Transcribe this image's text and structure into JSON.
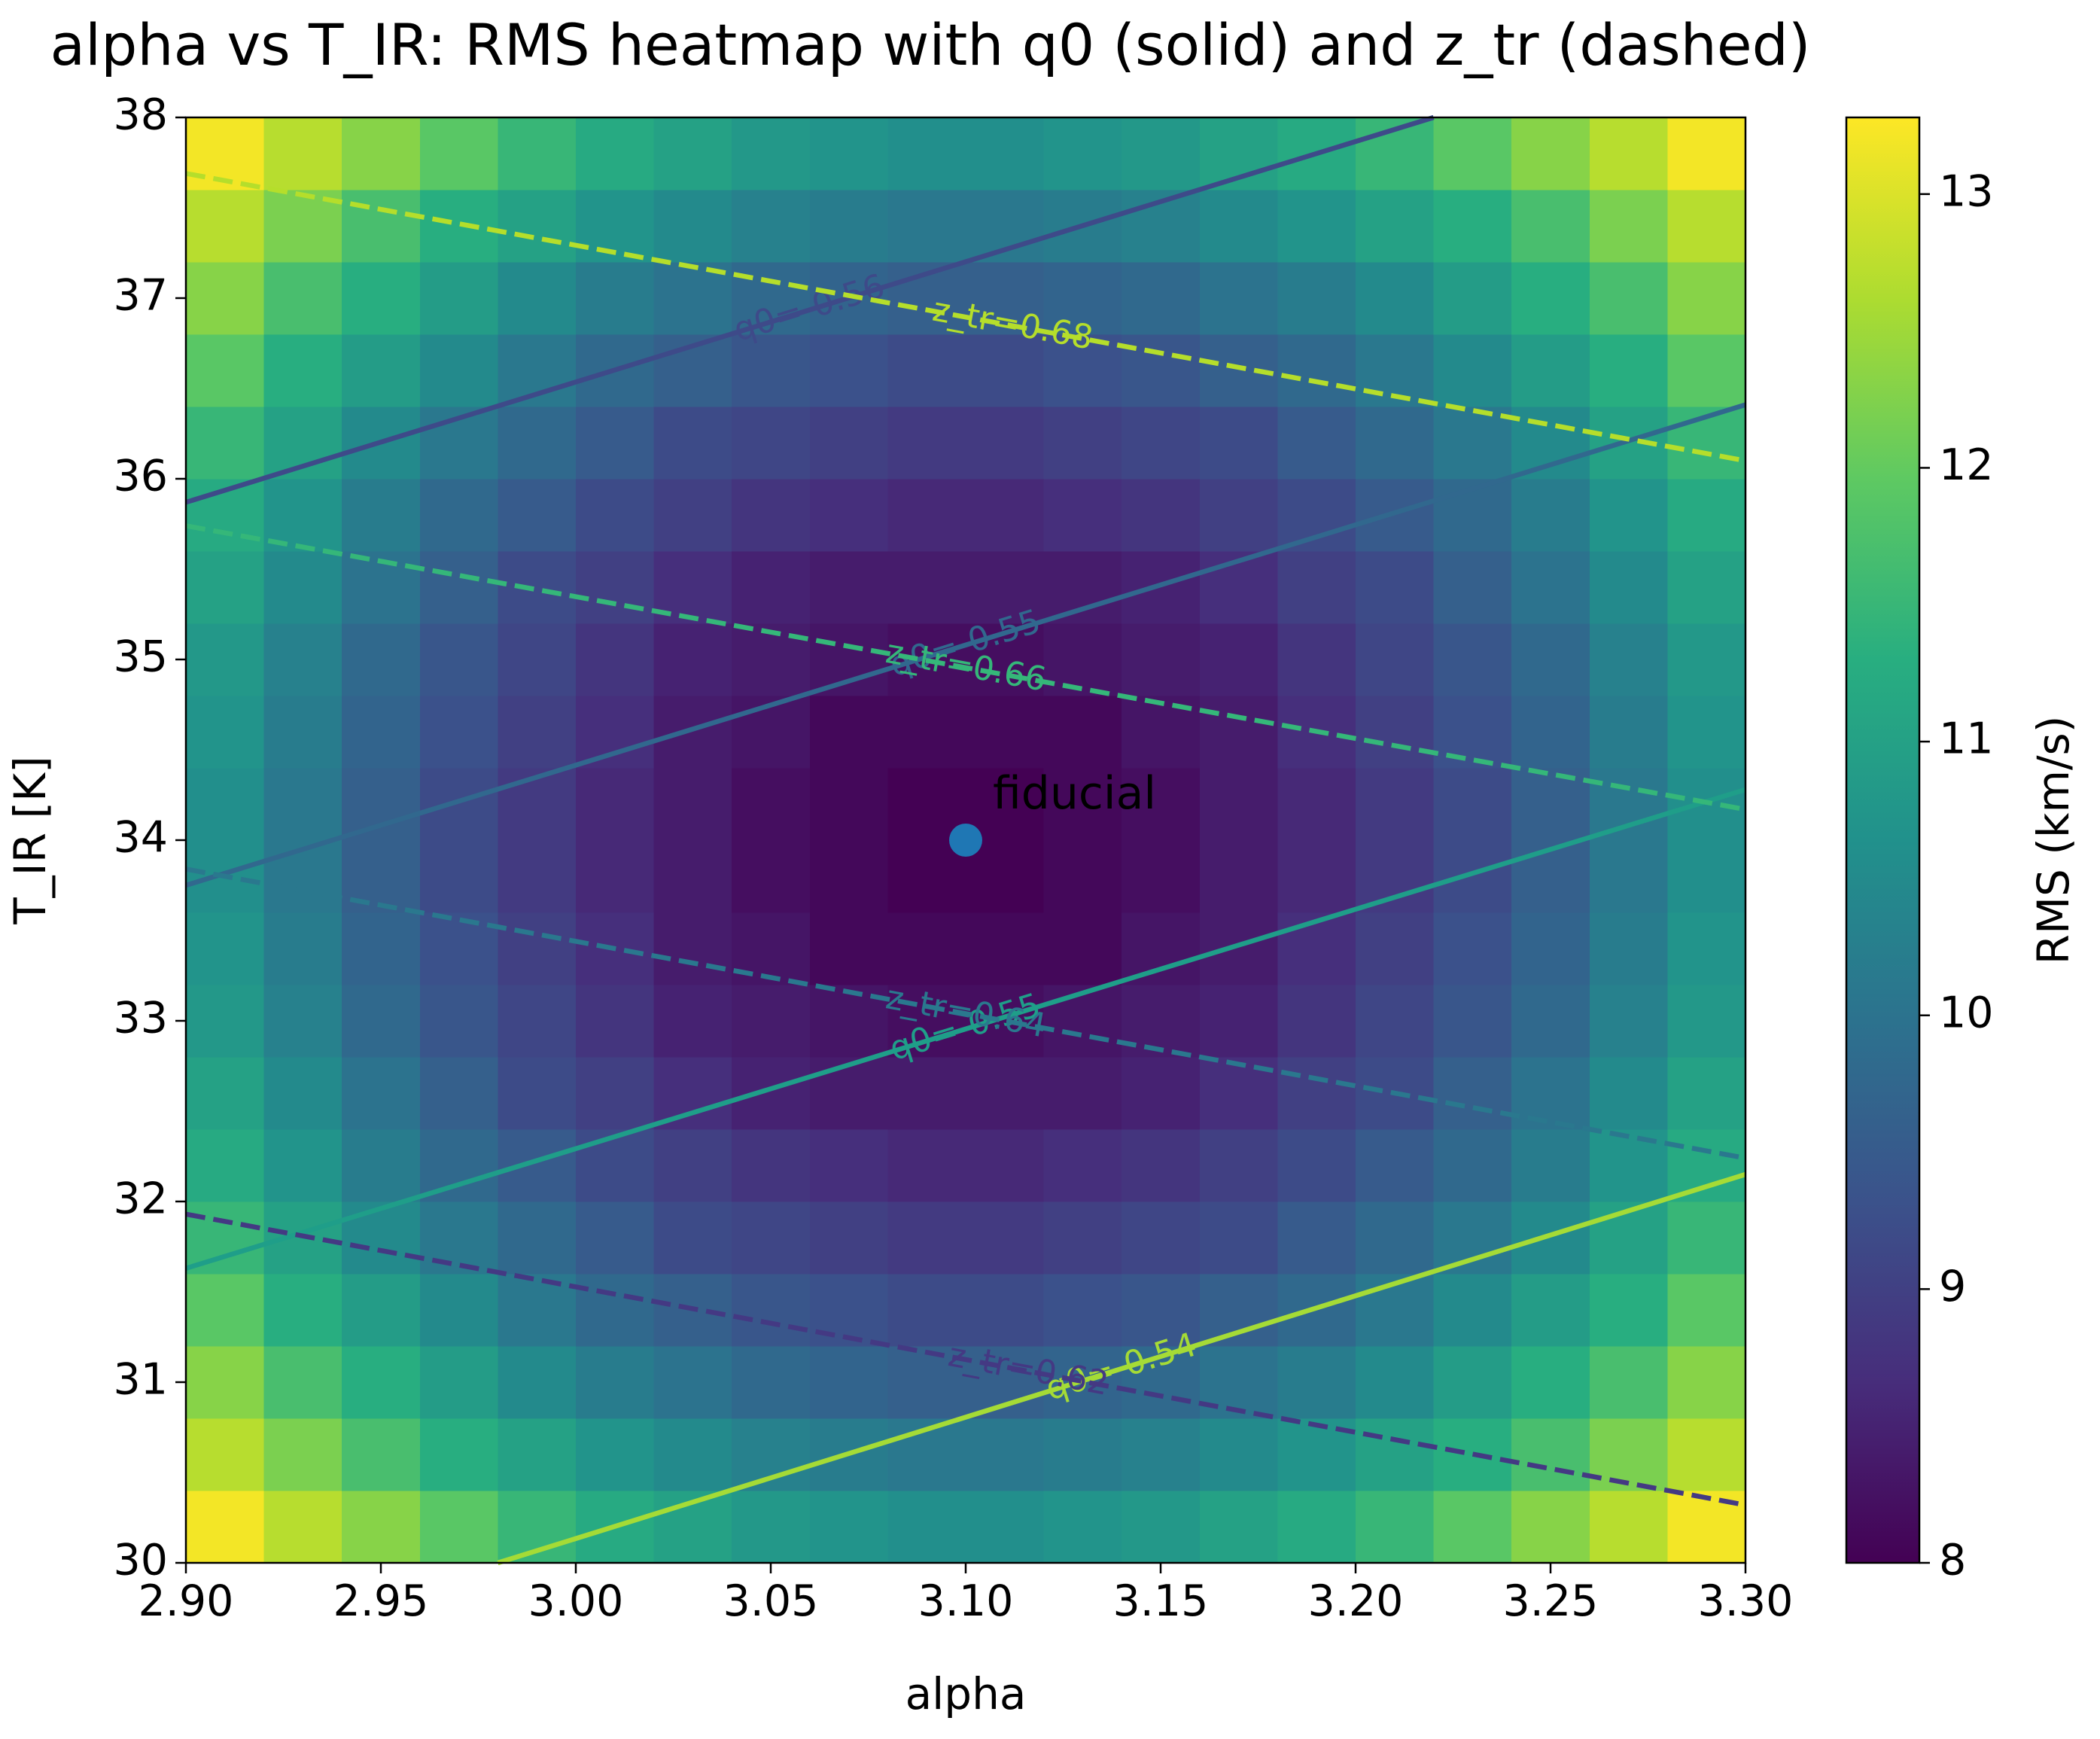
{
  "chart_data": {
    "type": "heatmap",
    "title": "alpha vs T_IR: RMS heatmap with q0 (solid) and z_tr (dashed)",
    "x_label": "alpha",
    "y_label": "T_IR [K]",
    "xlim": [
      2.9,
      3.3
    ],
    "ylim": [
      30,
      38
    ],
    "xticks": [
      {
        "value": 2.9,
        "label": "2.90"
      },
      2.95,
      {
        "value": 3.0,
        "label": "3.00"
      },
      3.05,
      {
        "value": 3.1,
        "label": "3.10"
      },
      3.15,
      {
        "value": 3.2,
        "label": "3.20"
      },
      3.25,
      {
        "value": 3.3,
        "label": "3.30"
      }
    ],
    "yticks": [
      30,
      31,
      32,
      33,
      34,
      35,
      36,
      37,
      38
    ],
    "colormap": "viridis",
    "z": [
      [
        13.2,
        12.7,
        12.3,
        11.9,
        11.5,
        11.2,
        11.0,
        10.8,
        10.7,
        10.6,
        10.6,
        10.7,
        10.8,
        11.0,
        11.2,
        11.5,
        11.9,
        12.3,
        12.7,
        13.2
      ],
      [
        12.7,
        12.2,
        11.7,
        11.3,
        11.0,
        10.7,
        10.5,
        10.3,
        10.2,
        10.1,
        10.1,
        10.2,
        10.3,
        10.5,
        10.7,
        11.0,
        11.3,
        11.7,
        12.2,
        12.7
      ],
      [
        12.3,
        11.7,
        11.3,
        10.9,
        10.5,
        10.2,
        10.0,
        9.8,
        9.7,
        9.6,
        9.6,
        9.7,
        9.8,
        10.0,
        10.2,
        10.5,
        10.9,
        11.3,
        11.7,
        12.3
      ],
      [
        11.9,
        11.3,
        10.9,
        10.5,
        10.1,
        9.8,
        9.6,
        9.4,
        9.3,
        9.2,
        9.2,
        9.3,
        9.4,
        9.6,
        9.8,
        10.1,
        10.5,
        10.9,
        11.3,
        11.9
      ],
      [
        11.5,
        11.0,
        10.5,
        10.1,
        9.8,
        9.5,
        9.2,
        9.1,
        9.0,
        8.9,
        8.9,
        9.0,
        9.1,
        9.2,
        9.5,
        9.8,
        10.1,
        10.5,
        11.0,
        11.5
      ],
      [
        11.2,
        10.7,
        10.2,
        9.8,
        9.5,
        9.2,
        9.0,
        8.8,
        8.7,
        8.6,
        8.6,
        8.7,
        8.8,
        9.0,
        9.2,
        9.5,
        9.8,
        10.2,
        10.7,
        11.2
      ],
      [
        11.0,
        10.5,
        10.0,
        9.6,
        9.2,
        9.0,
        8.7,
        8.5,
        8.4,
        8.4,
        8.4,
        8.4,
        8.5,
        8.7,
        9.0,
        9.2,
        9.6,
        10.0,
        10.5,
        11.0
      ],
      [
        10.8,
        10.3,
        9.8,
        9.4,
        9.1,
        8.8,
        8.5,
        8.4,
        8.3,
        8.2,
        8.2,
        8.3,
        8.4,
        8.5,
        8.8,
        9.1,
        9.4,
        9.8,
        10.3,
        10.8
      ],
      [
        10.7,
        10.2,
        9.7,
        9.3,
        9.0,
        8.7,
        8.4,
        8.3,
        8.1,
        8.1,
        8.1,
        8.1,
        8.3,
        8.4,
        8.7,
        9.0,
        9.3,
        9.7,
        10.2,
        10.7
      ],
      [
        10.6,
        10.1,
        9.6,
        9.2,
        8.9,
        8.6,
        8.4,
        8.2,
        8.1,
        8.0,
        8.0,
        8.1,
        8.2,
        8.4,
        8.6,
        8.9,
        9.2,
        9.6,
        10.1,
        10.6
      ],
      [
        10.6,
        10.1,
        9.6,
        9.2,
        8.9,
        8.6,
        8.4,
        8.2,
        8.1,
        8.0,
        8.0,
        8.1,
        8.2,
        8.4,
        8.6,
        8.9,
        9.2,
        9.6,
        10.1,
        10.6
      ],
      [
        10.7,
        10.2,
        9.7,
        9.3,
        9.0,
        8.7,
        8.4,
        8.3,
        8.1,
        8.1,
        8.1,
        8.1,
        8.3,
        8.4,
        8.7,
        9.0,
        9.3,
        9.7,
        10.2,
        10.7
      ],
      [
        10.8,
        10.3,
        9.8,
        9.4,
        9.1,
        8.8,
        8.5,
        8.4,
        8.3,
        8.2,
        8.2,
        8.3,
        8.4,
        8.5,
        8.8,
        9.1,
        9.4,
        9.8,
        10.3,
        10.8
      ],
      [
        11.0,
        10.5,
        10.0,
        9.6,
        9.2,
        9.0,
        8.7,
        8.5,
        8.4,
        8.4,
        8.4,
        8.4,
        8.5,
        8.7,
        9.0,
        9.2,
        9.6,
        10.0,
        10.5,
        11.0
      ],
      [
        11.2,
        10.7,
        10.2,
        9.8,
        9.5,
        9.2,
        9.0,
        8.8,
        8.7,
        8.6,
        8.6,
        8.7,
        8.8,
        9.0,
        9.2,
        9.5,
        9.8,
        10.2,
        10.7,
        11.2
      ],
      [
        11.5,
        11.0,
        10.5,
        10.1,
        9.8,
        9.5,
        9.2,
        9.1,
        9.0,
        8.9,
        8.9,
        9.0,
        9.1,
        9.2,
        9.5,
        9.8,
        10.1,
        10.5,
        11.0,
        11.5
      ],
      [
        11.9,
        11.3,
        10.9,
        10.5,
        10.1,
        9.8,
        9.6,
        9.4,
        9.3,
        9.2,
        9.2,
        9.3,
        9.4,
        9.6,
        9.8,
        10.1,
        10.5,
        10.9,
        11.3,
        11.9
      ],
      [
        12.3,
        11.7,
        11.3,
        10.9,
        10.5,
        10.2,
        10.0,
        9.8,
        9.7,
        9.6,
        9.6,
        9.7,
        9.8,
        10.0,
        10.2,
        10.5,
        10.9,
        11.3,
        11.7,
        12.3
      ],
      [
        12.7,
        12.2,
        11.7,
        11.3,
        11.0,
        10.7,
        10.5,
        10.3,
        10.2,
        10.1,
        10.1,
        10.2,
        10.3,
        10.5,
        10.7,
        11.0,
        11.3,
        11.7,
        12.2,
        12.7
      ],
      [
        13.2,
        12.7,
        12.3,
        11.9,
        11.5,
        11.2,
        11.0,
        10.8,
        10.7,
        10.6,
        10.6,
        10.7,
        10.8,
        11.0,
        11.2,
        11.5,
        11.9,
        12.3,
        12.7,
        13.2
      ]
    ],
    "colorbar": {
      "label": "RMS (km/s)",
      "lim": [
        8,
        13.28
      ],
      "ticks": [
        8,
        9,
        10,
        11,
        12,
        13
      ]
    },
    "contours": [
      {
        "label": "q0=-0.56",
        "style": "solid",
        "color": "#3e4a89",
        "x": [
          2.9,
          3.22
        ],
        "y": [
          35.87,
          38
        ]
      },
      {
        "label": "q0=-0.55",
        "style": "solid",
        "color": "#31688e",
        "x": [
          2.9,
          3.3
        ],
        "y": [
          33.75,
          36.41
        ]
      },
      {
        "label": "q0=-0.55",
        "style": "solid",
        "color": "#1f9e89",
        "x": [
          2.9,
          3.3
        ],
        "y": [
          31.63,
          34.28
        ]
      },
      {
        "label": "q0=-0.54",
        "style": "solid",
        "color": "#a5db36",
        "x": [
          2.98,
          3.3
        ],
        "y": [
          30,
          32.15
        ]
      },
      {
        "label": "z_tr=0.68",
        "style": "dashed",
        "color": "#b5de2b",
        "x": [
          2.9,
          3.3
        ],
        "y": [
          37.69,
          36.1
        ]
      },
      {
        "label": "z_tr=0.66",
        "style": "dashed",
        "color": "#35b779",
        "x": [
          2.9,
          3.3
        ],
        "y": [
          35.74,
          34.17
        ]
      },
      {
        "label": "z_tr=0.64",
        "style": "dashed",
        "color": "#2a788e",
        "x": [
          2.9,
          3.3
        ],
        "y": [
          33.84,
          32.24
        ]
      },
      {
        "label": "z_tr=0.62",
        "style": "dashed",
        "color": "#443983",
        "x": [
          2.9,
          3.3
        ],
        "y": [
          31.93,
          30.32
        ]
      }
    ],
    "points": [
      {
        "label": "fiducial",
        "x": 3.1,
        "y": 34,
        "color": "#1f77b4"
      }
    ]
  }
}
